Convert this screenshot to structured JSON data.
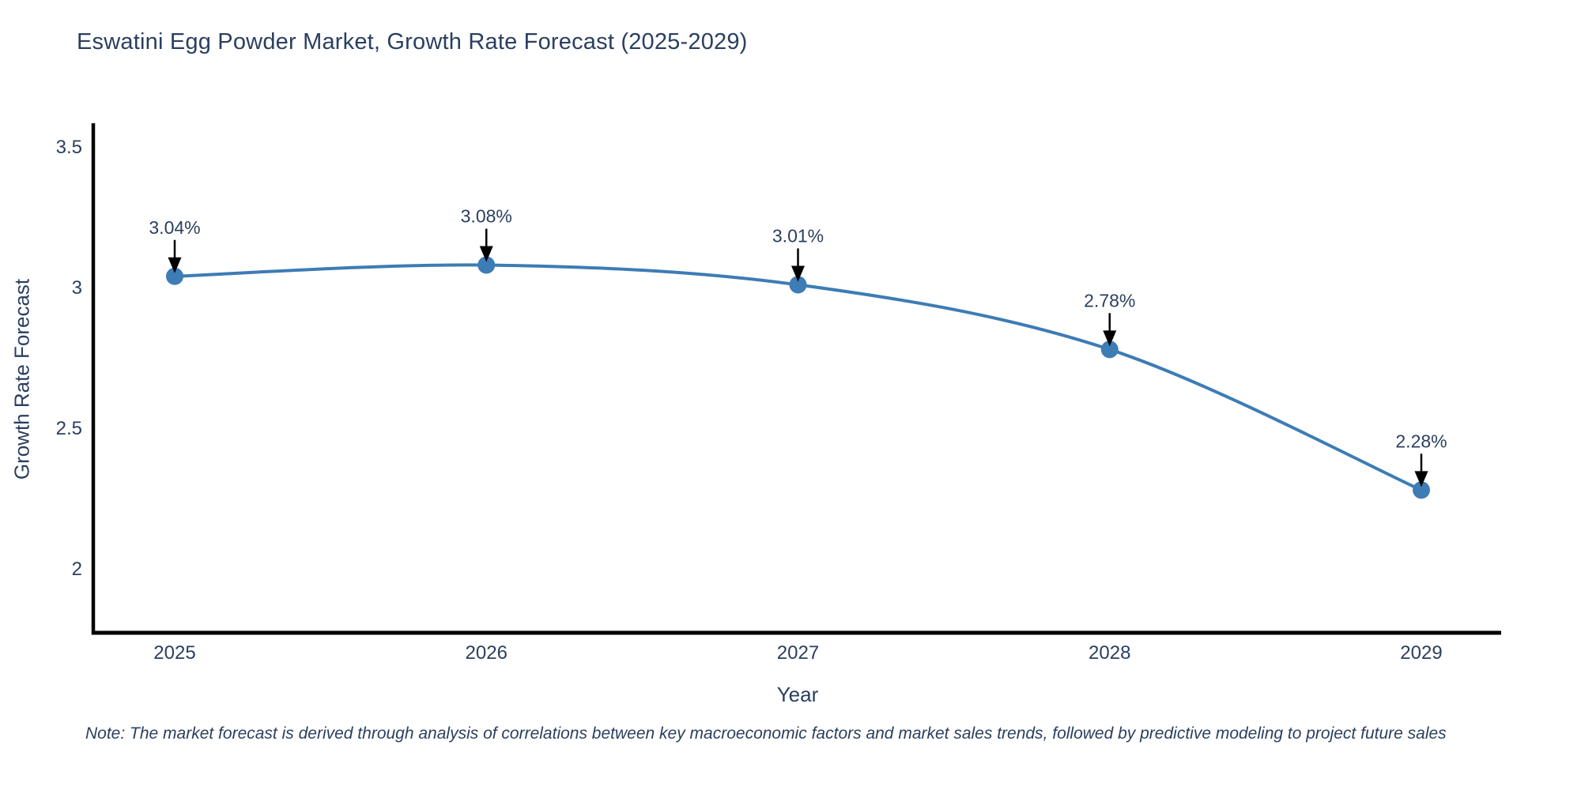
{
  "note": "Note: The market forecast is derived through analysis of correlations between key macroeconomic factors and market sales trends, followed by predictive modeling to project future sales",
  "chart_data": {
    "type": "line",
    "title": "Eswatini Egg Powder Market, Growth Rate Forecast (2025-2029)",
    "xlabel": "Year",
    "ylabel": "Growth Rate Forecast",
    "x": [
      2025,
      2026,
      2027,
      2028,
      2029
    ],
    "values": [
      3.04,
      3.08,
      3.01,
      2.78,
      2.28
    ],
    "point_labels": [
      "3.04%",
      "3.08%",
      "3.01%",
      "2.78%",
      "2.28%"
    ],
    "x_tick_labels": [
      "2025",
      "2026",
      "2027",
      "2028",
      "2029"
    ],
    "y_ticks": [
      {
        "label": "3.5",
        "value": 3.5
      },
      {
        "label": "3",
        "value": 3.0
      },
      {
        "label": "2.5",
        "value": 2.5
      },
      {
        "label": "2",
        "value": 2.0
      }
    ],
    "ylim": [
      1.77,
      3.57
    ],
    "grid": false,
    "line_style": "spline",
    "legend": "none",
    "colors": {
      "line": "#3d7cb5",
      "marker": "#3d7cb5",
      "text": "#2a3f5f",
      "axis": "#000000",
      "annotation_arrow": "#000000",
      "background": "#ffffff"
    }
  }
}
